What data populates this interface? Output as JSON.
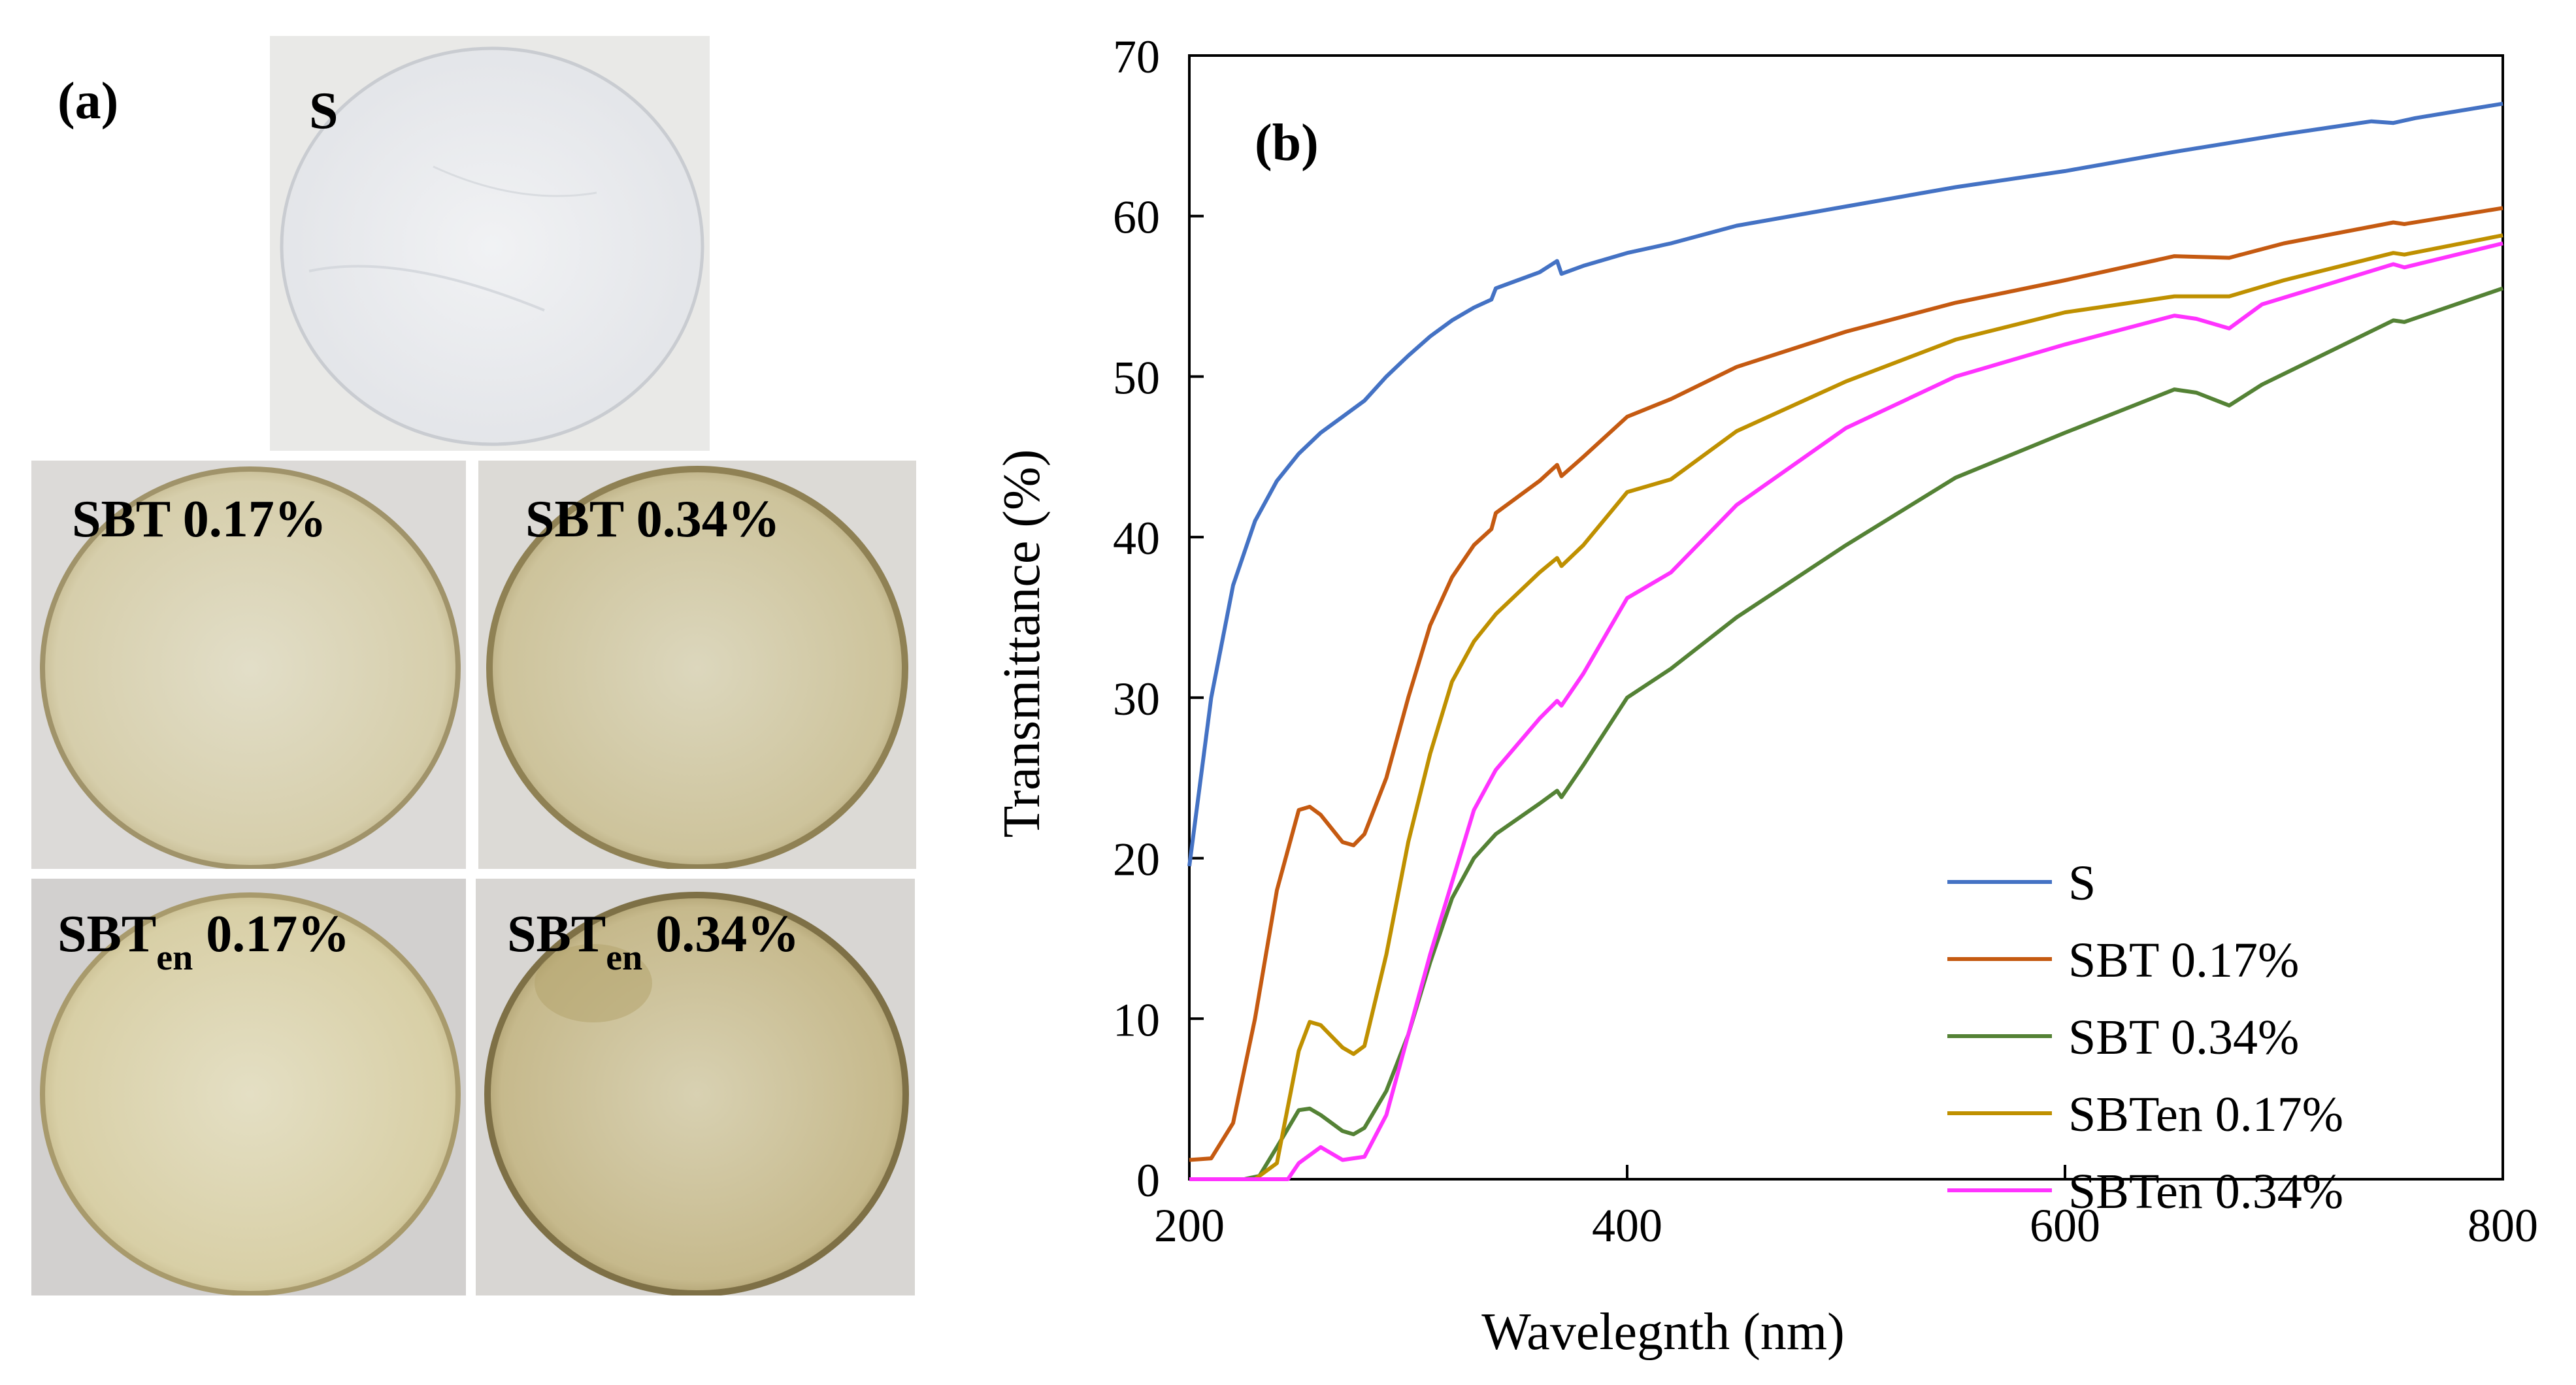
{
  "panel_a": {
    "label": "(a)",
    "films": [
      {
        "id": "S",
        "name": "S",
        "sub": "",
        "suffix": ""
      },
      {
        "id": "SBT017",
        "name": "SBT 0.17%",
        "sub": "",
        "suffix": ""
      },
      {
        "id": "SBT034",
        "name": "SBT 0.34%",
        "sub": "",
        "suffix": ""
      },
      {
        "id": "SBTen017",
        "name": "SBT",
        "sub": "en",
        "suffix": " 0.17%"
      },
      {
        "id": "SBTen034",
        "name": "SBT",
        "sub": "en",
        "suffix": " 0.34%"
      }
    ],
    "colors": {
      "background": "#e9e9e7",
      "film_clear": "#ecedef",
      "film_tinted_light": "#ddd8bf",
      "film_tinted_dark": "#c9bf97",
      "film_edge": "#a0936a"
    }
  },
  "chart_data": {
    "type": "line",
    "panel_label": "(b)",
    "xlabel": "Wavelegnth (nm)",
    "ylabel": "Transmittance (%)",
    "xlim": [
      200,
      800
    ],
    "ylim": [
      0,
      70
    ],
    "xticks": [
      200,
      400,
      600,
      800
    ],
    "yticks": [
      0,
      10,
      20,
      30,
      40,
      50,
      60,
      70
    ],
    "grid": false,
    "legend_position": "bottom-right",
    "series": [
      {
        "name": "S",
        "color": "#4472c4",
        "points": [
          [
            200,
            19.5
          ],
          [
            210,
            30
          ],
          [
            220,
            37
          ],
          [
            230,
            41
          ],
          [
            240,
            43.5
          ],
          [
            250,
            45.2
          ],
          [
            260,
            46.5
          ],
          [
            270,
            47.5
          ],
          [
            280,
            48.5
          ],
          [
            290,
            50
          ],
          [
            300,
            51.3
          ],
          [
            310,
            52.5
          ],
          [
            320,
            53.5
          ],
          [
            330,
            54.3
          ],
          [
            338,
            54.8
          ],
          [
            340,
            55.5
          ],
          [
            350,
            56
          ],
          [
            360,
            56.5
          ],
          [
            368,
            57.2
          ],
          [
            370,
            56.4
          ],
          [
            380,
            56.9
          ],
          [
            400,
            57.7
          ],
          [
            420,
            58.3
          ],
          [
            450,
            59.4
          ],
          [
            500,
            60.6
          ],
          [
            550,
            61.8
          ],
          [
            600,
            62.8
          ],
          [
            650,
            64
          ],
          [
            700,
            65.1
          ],
          [
            740,
            65.9
          ],
          [
            750,
            65.8
          ],
          [
            760,
            66.1
          ],
          [
            800,
            67
          ]
        ]
      },
      {
        "name": "SBT 0.17%",
        "color": "#c55a11",
        "points": [
          [
            200,
            1.2
          ],
          [
            210,
            1.3
          ],
          [
            220,
            3.5
          ],
          [
            230,
            10
          ],
          [
            240,
            18
          ],
          [
            250,
            23
          ],
          [
            255,
            23.2
          ],
          [
            260,
            22.7
          ],
          [
            270,
            21
          ],
          [
            275,
            20.8
          ],
          [
            280,
            21.5
          ],
          [
            290,
            25
          ],
          [
            300,
            30
          ],
          [
            310,
            34.5
          ],
          [
            320,
            37.5
          ],
          [
            330,
            39.5
          ],
          [
            338,
            40.5
          ],
          [
            340,
            41.5
          ],
          [
            350,
            42.5
          ],
          [
            360,
            43.5
          ],
          [
            368,
            44.5
          ],
          [
            370,
            43.8
          ],
          [
            380,
            45
          ],
          [
            400,
            47.5
          ],
          [
            420,
            48.6
          ],
          [
            450,
            50.6
          ],
          [
            500,
            52.8
          ],
          [
            550,
            54.6
          ],
          [
            600,
            56
          ],
          [
            650,
            57.5
          ],
          [
            675,
            57.4
          ],
          [
            700,
            58.3
          ],
          [
            750,
            59.6
          ],
          [
            755,
            59.5
          ],
          [
            800,
            60.5
          ]
        ]
      },
      {
        "name": "SBT 0.34%",
        "color": "#548235",
        "points": [
          [
            200,
            0
          ],
          [
            225,
            0
          ],
          [
            232,
            0.2
          ],
          [
            240,
            2
          ],
          [
            250,
            4.3
          ],
          [
            255,
            4.4
          ],
          [
            260,
            4
          ],
          [
            270,
            3
          ],
          [
            275,
            2.8
          ],
          [
            280,
            3.2
          ],
          [
            290,
            5.5
          ],
          [
            300,
            9
          ],
          [
            310,
            13.5
          ],
          [
            320,
            17.5
          ],
          [
            330,
            20
          ],
          [
            340,
            21.5
          ],
          [
            360,
            23.4
          ],
          [
            368,
            24.2
          ],
          [
            370,
            23.8
          ],
          [
            380,
            25.8
          ],
          [
            400,
            30
          ],
          [
            420,
            31.8
          ],
          [
            450,
            35
          ],
          [
            500,
            39.5
          ],
          [
            550,
            43.7
          ],
          [
            600,
            46.5
          ],
          [
            650,
            49.2
          ],
          [
            660,
            49
          ],
          [
            675,
            48.2
          ],
          [
            690,
            49.5
          ],
          [
            750,
            53.5
          ],
          [
            755,
            53.4
          ],
          [
            800,
            55.5
          ]
        ]
      },
      {
        "name": "SBTen 0.17%",
        "color": "#bf9000",
        "points": [
          [
            200,
            0
          ],
          [
            230,
            0
          ],
          [
            240,
            1
          ],
          [
            250,
            8
          ],
          [
            255,
            9.8
          ],
          [
            260,
            9.6
          ],
          [
            270,
            8.2
          ],
          [
            275,
            7.8
          ],
          [
            280,
            8.3
          ],
          [
            290,
            14
          ],
          [
            300,
            21
          ],
          [
            310,
            26.5
          ],
          [
            320,
            31
          ],
          [
            330,
            33.5
          ],
          [
            340,
            35.2
          ],
          [
            360,
            37.8
          ],
          [
            368,
            38.7
          ],
          [
            370,
            38.2
          ],
          [
            380,
            39.5
          ],
          [
            400,
            42.8
          ],
          [
            420,
            43.6
          ],
          [
            450,
            46.6
          ],
          [
            500,
            49.7
          ],
          [
            550,
            52.3
          ],
          [
            600,
            54
          ],
          [
            650,
            55
          ],
          [
            675,
            55
          ],
          [
            700,
            56
          ],
          [
            750,
            57.7
          ],
          [
            755,
            57.6
          ],
          [
            800,
            58.8
          ]
        ]
      },
      {
        "name": "SBTen 0.34%",
        "color": "#ff33ff",
        "points": [
          [
            200,
            0
          ],
          [
            245,
            0
          ],
          [
            250,
            1
          ],
          [
            260,
            2
          ],
          [
            270,
            1.2
          ],
          [
            280,
            1.4
          ],
          [
            290,
            4
          ],
          [
            300,
            9
          ],
          [
            310,
            14
          ],
          [
            320,
            18.5
          ],
          [
            330,
            23
          ],
          [
            340,
            25.5
          ],
          [
            360,
            28.7
          ],
          [
            368,
            29.8
          ],
          [
            370,
            29.5
          ],
          [
            380,
            31.5
          ],
          [
            400,
            36.2
          ],
          [
            420,
            37.8
          ],
          [
            450,
            42
          ],
          [
            500,
            46.8
          ],
          [
            550,
            50
          ],
          [
            600,
            52
          ],
          [
            650,
            53.8
          ],
          [
            660,
            53.6
          ],
          [
            675,
            53
          ],
          [
            690,
            54.5
          ],
          [
            750,
            57
          ],
          [
            755,
            56.8
          ],
          [
            800,
            58.3
          ]
        ]
      }
    ]
  }
}
